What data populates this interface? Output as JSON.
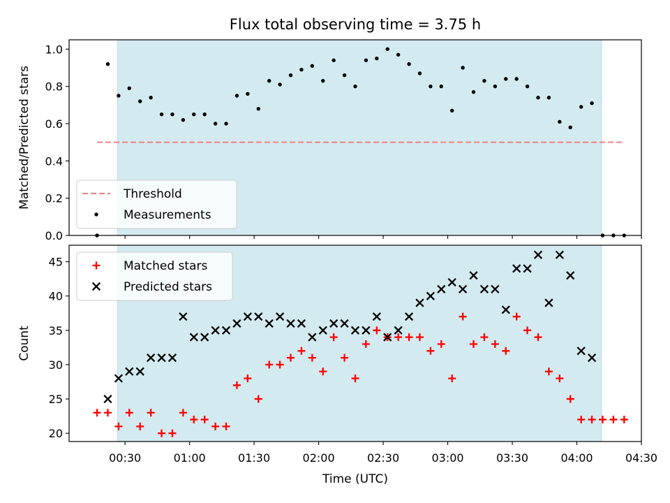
{
  "chart_data": {
    "type": "scatter",
    "title": "Flux total observing time = 3.75 h",
    "xlabel": "Time (UTC)",
    "x_tick_labels": [
      "00:30",
      "01:00",
      "01:30",
      "02:00",
      "02:30",
      "03:00",
      "03:30",
      "04:00",
      "04:30"
    ],
    "x_tick_minutes": [
      30,
      60,
      90,
      120,
      150,
      180,
      210,
      240,
      270
    ],
    "xlim_minutes": [
      4,
      270
    ],
    "observing_window_minutes": [
      26.5,
      251.5
    ],
    "observing_window_color": "#d3eaf0",
    "panels": [
      {
        "ylabel": "Matched/Predicted stars",
        "ylim": [
          0,
          1.05
        ],
        "yticks": [
          0.0,
          0.2,
          0.4,
          0.6,
          0.8,
          1.0
        ],
        "ytick_labels": [
          "0.0",
          "0.2",
          "0.4",
          "0.6",
          "0.8",
          "1.0"
        ],
        "legend_position": "lower-left",
        "lines": [
          {
            "name": "Threshold",
            "color": "#f08080",
            "style": "dashed",
            "x": [
              17,
              262
            ],
            "y": [
              0.5,
              0.5
            ]
          }
        ],
        "series": [
          {
            "name": "Measurements",
            "marker": "dot",
            "color": "#000000",
            "x": [
              17,
              22,
              27,
              32,
              37,
              42,
              47,
              52,
              57,
              62,
              67,
              72,
              77,
              82,
              87,
              92,
              97,
              102,
              107,
              112,
              117,
              122,
              127,
              132,
              137,
              142,
              147,
              152,
              157,
              162,
              167,
              172,
              177,
              182,
              187,
              192,
              197,
              202,
              207,
              212,
              217,
              222,
              227,
              232,
              237,
              242,
              247,
              252,
              257,
              262
            ],
            "y": [
              0.0,
              0.92,
              0.75,
              0.79,
              0.72,
              0.74,
              0.65,
              0.65,
              0.62,
              0.65,
              0.65,
              0.6,
              0.6,
              0.75,
              0.76,
              0.68,
              0.83,
              0.81,
              0.86,
              0.89,
              0.91,
              0.83,
              0.94,
              0.86,
              0.8,
              0.94,
              0.95,
              1.0,
              0.97,
              0.92,
              0.87,
              0.8,
              0.8,
              0.67,
              0.9,
              0.77,
              0.83,
              0.8,
              0.84,
              0.84,
              0.8,
              0.74,
              0.74,
              0.61,
              0.58,
              0.69,
              0.71,
              0.0,
              0.0,
              0.0
            ]
          }
        ]
      },
      {
        "ylabel": "Count",
        "ylim": [
          18.8,
          47.4
        ],
        "yticks": [
          20,
          25,
          30,
          35,
          40,
          45
        ],
        "ytick_labels": [
          "20",
          "25",
          "30",
          "35",
          "40",
          "45"
        ],
        "legend_position": "upper-left",
        "lines": [],
        "series": [
          {
            "name": "Matched stars",
            "marker": "plus",
            "color": "#ff0000",
            "x": [
              17,
              22,
              27,
              32,
              37,
              42,
              47,
              52,
              57,
              62,
              67,
              72,
              77,
              82,
              87,
              92,
              97,
              102,
              107,
              112,
              117,
              122,
              127,
              132,
              137,
              142,
              147,
              152,
              157,
              162,
              167,
              172,
              177,
              182,
              187,
              192,
              197,
              202,
              207,
              212,
              217,
              222,
              227,
              232,
              237,
              242,
              247,
              252,
              257,
              262
            ],
            "y": [
              23,
              23,
              21,
              23,
              21,
              23,
              20,
              20,
              23,
              22,
              22,
              21,
              21,
              27,
              28,
              25,
              30,
              30,
              31,
              32,
              31,
              29,
              34,
              31,
              28,
              33,
              35,
              34,
              34,
              34,
              34,
              32,
              33,
              28,
              37,
              33,
              34,
              33,
              32,
              37,
              35,
              34,
              29,
              28,
              25,
              22,
              22,
              22,
              22,
              22
            ]
          },
          {
            "name": "Predicted stars",
            "marker": "x",
            "color": "#000000",
            "x": [
              22,
              27,
              32,
              37,
              42,
              47,
              52,
              57,
              62,
              67,
              72,
              77,
              82,
              87,
              92,
              97,
              102,
              107,
              112,
              117,
              122,
              127,
              132,
              137,
              142,
              147,
              152,
              157,
              162,
              167,
              172,
              177,
              182,
              187,
              192,
              197,
              202,
              207,
              212,
              217,
              222,
              227,
              232,
              237,
              242,
              247
            ],
            "y": [
              25,
              28,
              29,
              29,
              31,
              31,
              31,
              37,
              34,
              34,
              35,
              35,
              36,
              37,
              37,
              36,
              37,
              36,
              36,
              34,
              35,
              36,
              36,
              35,
              35,
              37,
              34,
              35,
              37,
              39,
              40,
              41,
              42,
              41,
              43,
              41,
              41,
              38,
              44,
              44,
              46,
              39,
              46,
              43,
              32,
              31
            ]
          }
        ]
      }
    ]
  }
}
